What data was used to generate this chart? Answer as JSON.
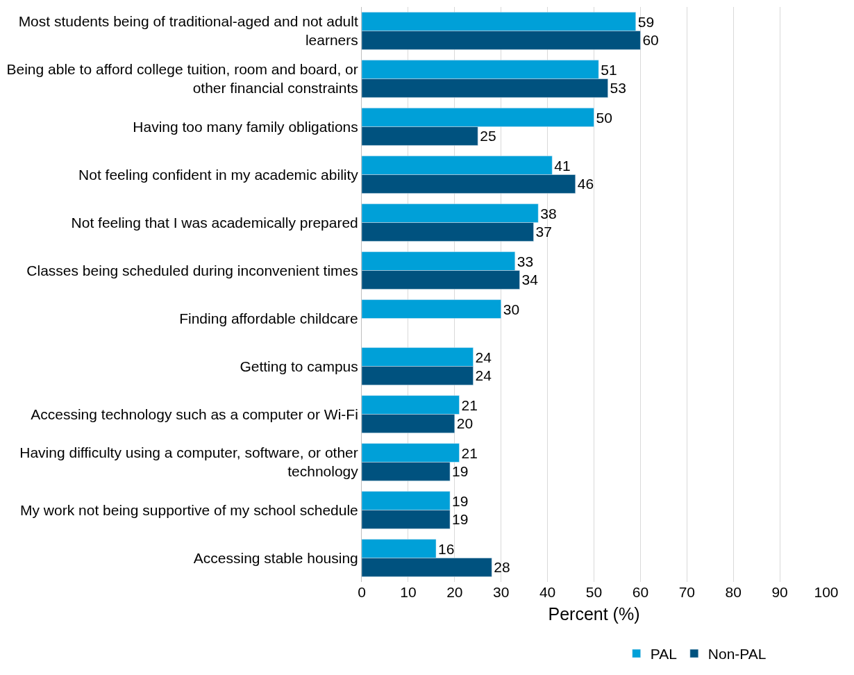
{
  "chart_data": {
    "type": "bar",
    "orientation": "horizontal",
    "xlabel": "Percent (%)",
    "categories": [
      "Most students being of traditional-aged and not adult learners",
      "Being able to afford college tuition, room and board, or other financial constraints",
      "Having too many family obligations",
      "Not feeling confident in my academic ability",
      "Not feeling that I was academically prepared",
      "Classes being scheduled during inconvenient times",
      "Finding affordable childcare",
      "Getting to campus",
      "Accessing technology such as a computer or Wi-Fi",
      "Having difficulty using a computer, software, or other technology",
      "My work not being supportive of my school schedule",
      "Accessing stable housing"
    ],
    "series": [
      {
        "name": "PAL",
        "color": "#00a0d8",
        "values": [
          59,
          51,
          50,
          41,
          38,
          33,
          30,
          24,
          21,
          21,
          19,
          16
        ]
      },
      {
        "name": "Non-PAL",
        "color": "#00527f",
        "values": [
          60,
          53,
          25,
          46,
          37,
          34,
          null,
          24,
          20,
          19,
          19,
          28
        ]
      }
    ],
    "xlim": [
      0,
      100
    ],
    "xticks": [
      0,
      10,
      20,
      30,
      40,
      50,
      60,
      70,
      80,
      90,
      100
    ],
    "grid": "x",
    "legend": "bottom",
    "data_labels": true
  }
}
